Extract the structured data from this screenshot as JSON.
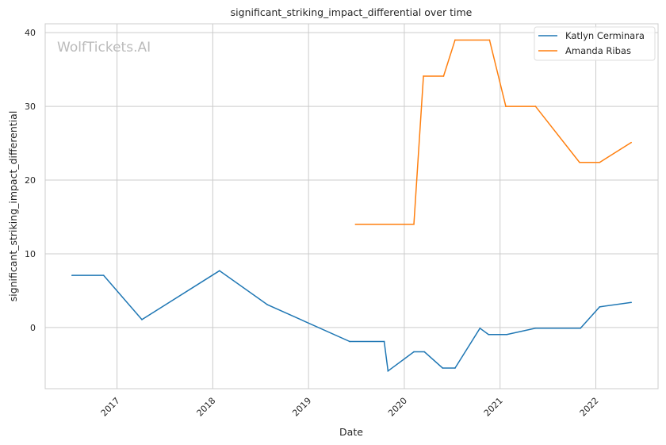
{
  "chart_data": {
    "type": "line",
    "title": "significant_striking_impact_differential over time",
    "xlabel": "Date",
    "ylabel": "significant_striking_impact_differential",
    "watermark": "WolfTickets.AI",
    "xlim": [
      2016.25,
      2022.65
    ],
    "ylim": [
      -8.3,
      41.2
    ],
    "xticks": [
      2017,
      2018,
      2019,
      2020,
      2021,
      2022
    ],
    "xtick_labels": [
      "2017",
      "2018",
      "2019",
      "2020",
      "2021",
      "2022"
    ],
    "yticks": [
      0,
      10,
      20,
      30,
      40
    ],
    "ytick_labels": [
      "0",
      "10",
      "20",
      "30",
      "40"
    ],
    "grid": true,
    "legend_position": "top-right",
    "series": [
      {
        "name": "Katlyn Cerminara",
        "color": "#1f77b4",
        "x": [
          2016.53,
          2016.86,
          2017.26,
          2018.07,
          2018.57,
          2019.43,
          2019.79,
          2019.83,
          2020.1,
          2020.21,
          2020.4,
          2020.53,
          2020.79,
          2020.88,
          2021.07,
          2021.37,
          2021.84,
          2022.04,
          2022.37
        ],
        "y": [
          7.07,
          7.07,
          1.07,
          7.7,
          3.1,
          -1.9,
          -1.9,
          -5.9,
          -3.3,
          -3.3,
          -5.5,
          -5.5,
          -0.1,
          -0.96,
          -0.96,
          -0.1,
          -0.1,
          2.8,
          3.4
        ]
      },
      {
        "name": "Amanda Ribas",
        "color": "#ff7f0e",
        "x": [
          2019.49,
          2020.1,
          2020.2,
          2020.41,
          2020.53,
          2020.89,
          2021.06,
          2021.37,
          2021.83,
          2022.04,
          2022.37
        ],
        "y": [
          14.0,
          14.0,
          34.1,
          34.1,
          39.0,
          39.0,
          30.0,
          30.0,
          22.4,
          22.4,
          25.1
        ]
      }
    ]
  }
}
